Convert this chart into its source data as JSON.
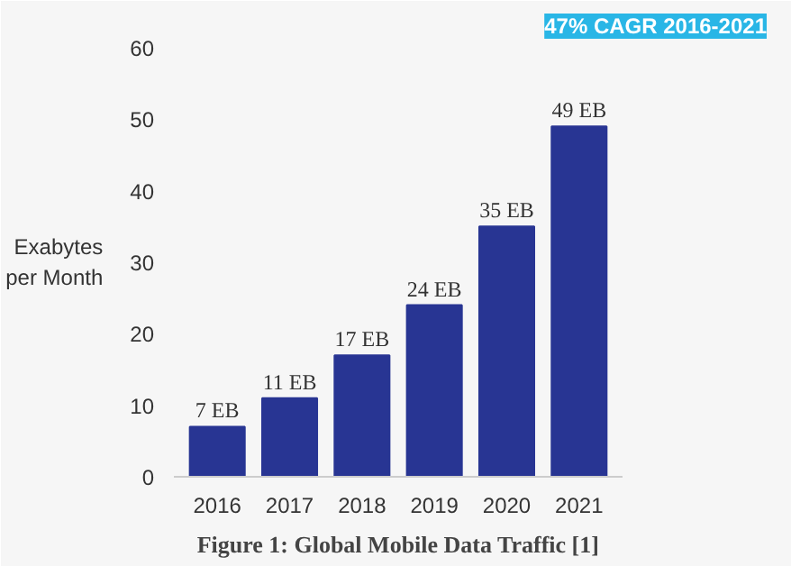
{
  "chart_data": {
    "type": "bar",
    "title": "Figure 1: Global Mobile Data Traffic [1]",
    "ylabel": "Exabytes per Month",
    "categories": [
      "2016",
      "2017",
      "2018",
      "2019",
      "2020",
      "2021"
    ],
    "values": [
      7,
      11,
      17,
      24,
      35,
      49
    ],
    "value_labels": [
      "7 EB",
      "11 EB",
      "17 EB",
      "24 EB",
      "35 EB",
      "49 EB"
    ],
    "color": "#283593",
    "ylim": [
      0,
      60
    ],
    "yticks": [
      0,
      10,
      20,
      30,
      40,
      50,
      60
    ],
    "grid": false,
    "annotations": [
      "47% CAGR 2016-2021"
    ]
  }
}
